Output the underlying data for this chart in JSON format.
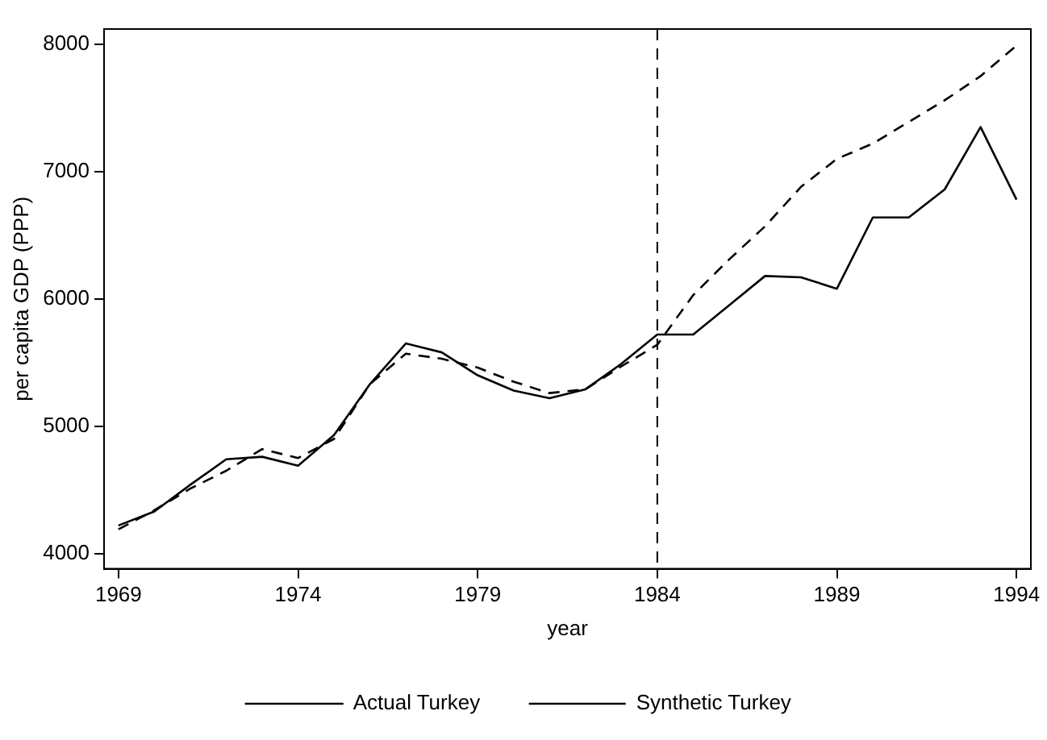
{
  "chart_data": {
    "type": "line",
    "xlabel": "year",
    "ylabel": "per capita GDP (PPP)",
    "x": [
      1969,
      1970,
      1971,
      1972,
      1973,
      1974,
      1975,
      1976,
      1977,
      1978,
      1979,
      1980,
      1981,
      1982,
      1983,
      1984,
      1985,
      1986,
      1987,
      1988,
      1989,
      1990,
      1991,
      1992,
      1993,
      1994
    ],
    "series": [
      {
        "name": "Actual Turkey",
        "color": "#000000",
        "line_style": "solid",
        "values": [
          4220,
          4330,
          4540,
          4740,
          4760,
          4690,
          4930,
          5330,
          5650,
          5580,
          5400,
          5280,
          5220,
          5290,
          5490,
          5720,
          5720,
          5950,
          6180,
          6170,
          6080,
          6640,
          6640,
          6860,
          7350,
          6780
        ]
      },
      {
        "name": "Synthetic Turkey",
        "color": "#000000",
        "line_style": "dashed",
        "values": [
          4190,
          4340,
          4510,
          4650,
          4820,
          4750,
          4900,
          5330,
          5570,
          5530,
          5460,
          5350,
          5260,
          5290,
          5470,
          5640,
          6030,
          6310,
          6570,
          6880,
          7100,
          7220,
          7390,
          7560,
          7750,
          7990
        ]
      }
    ],
    "xlim": [
      1968.6,
      1994.4
    ],
    "xticks": [
      1969,
      1974,
      1979,
      1984,
      1989,
      1994
    ],
    "ylim": [
      3880,
      8120
    ],
    "yticks": [
      4000,
      5000,
      6000,
      7000,
      8000
    ],
    "ref_lines": [
      {
        "axis": "x",
        "value": 1984,
        "color": "#000000",
        "line_style": "dashed"
      }
    ],
    "grid": false,
    "legend": "bottom",
    "marker": "none"
  }
}
